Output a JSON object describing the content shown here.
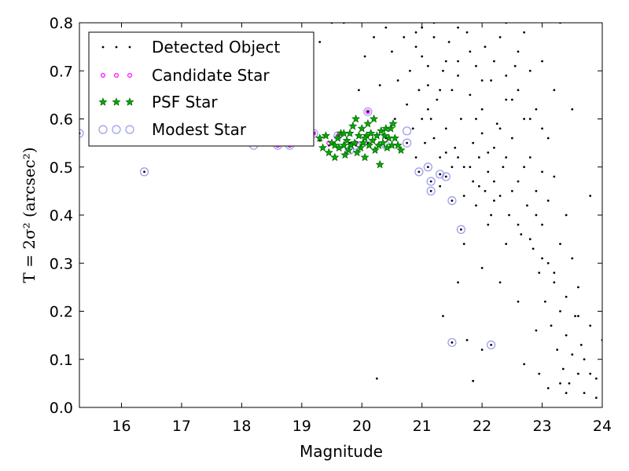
{
  "chart_data": {
    "type": "scatter",
    "xlabel": "Magnitude",
    "ylabel": "T = 2σ² (arcsec²)",
    "xlim": [
      15.3,
      24
    ],
    "ylim": [
      0.0,
      0.8
    ],
    "xticks": [
      "16",
      "17",
      "18",
      "19",
      "20",
      "21",
      "22",
      "23",
      "24"
    ],
    "yticks": [
      "0.0",
      "0.1",
      "0.2",
      "0.3",
      "0.4",
      "0.5",
      "0.6",
      "0.7",
      "0.8"
    ],
    "legend_position": "top-left",
    "legend": [
      {
        "name": "Detected Object",
        "marker": "dot",
        "color": "#000000"
      },
      {
        "name": "Candidate Star",
        "marker": "small-circle",
        "color": "#ff00ff"
      },
      {
        "name": "PSF Star",
        "marker": "star",
        "color": "#00aa00"
      },
      {
        "name": "Modest Star",
        "marker": "hollow-circle",
        "color": "#9999ee"
      }
    ],
    "series": [
      {
        "name": "Detected Object",
        "points": [
          [
            15.3,
            0.57
          ],
          [
            16.38,
            0.49
          ],
          [
            18.2,
            0.55
          ],
          [
            18.6,
            0.55
          ],
          [
            18.8,
            0.545
          ],
          [
            19.2,
            0.57
          ],
          [
            19.3,
            0.555
          ],
          [
            19.45,
            0.545
          ],
          [
            19.6,
            0.565
          ],
          [
            19.8,
            0.55
          ],
          [
            19.9,
            0.545
          ],
          [
            20.1,
            0.615
          ],
          [
            20.1,
            0.55
          ],
          [
            20.4,
            0.56
          ],
          [
            20.75,
            0.55
          ],
          [
            20.95,
            0.49
          ],
          [
            21.1,
            0.5
          ],
          [
            21.15,
            0.47
          ],
          [
            21.15,
            0.45
          ],
          [
            21.3,
            0.485
          ],
          [
            21.4,
            0.48
          ],
          [
            21.5,
            0.43
          ],
          [
            21.65,
            0.37
          ],
          [
            21.5,
            0.135
          ],
          [
            22.15,
            0.13
          ],
          [
            21.35,
            0.19
          ],
          [
            20.25,
            0.06
          ],
          [
            21.75,
            0.14
          ],
          [
            21.85,
            0.055
          ],
          [
            22.0,
            0.12
          ],
          [
            19.0,
            0.62
          ],
          [
            19.1,
            0.72
          ],
          [
            19.3,
            0.76
          ],
          [
            19.5,
            0.8
          ],
          [
            19.7,
            0.8
          ],
          [
            19.95,
            0.66
          ],
          [
            20.05,
            0.73
          ],
          [
            20.2,
            0.77
          ],
          [
            20.3,
            0.67
          ],
          [
            20.4,
            0.79
          ],
          [
            20.5,
            0.74
          ],
          [
            20.55,
            0.6
          ],
          [
            20.6,
            0.68
          ],
          [
            20.7,
            0.77
          ],
          [
            20.75,
            0.63
          ],
          [
            20.8,
            0.7
          ],
          [
            20.85,
            0.58
          ],
          [
            20.9,
            0.75
          ],
          [
            20.95,
            0.66
          ],
          [
            21.0,
            0.79
          ],
          [
            21.05,
            0.55
          ],
          [
            21.1,
            0.71
          ],
          [
            21.15,
            0.6
          ],
          [
            21.2,
            0.77
          ],
          [
            21.25,
            0.64
          ],
          [
            21.3,
            0.52
          ],
          [
            21.35,
            0.7
          ],
          [
            21.4,
            0.58
          ],
          [
            21.45,
            0.76
          ],
          [
            21.5,
            0.66
          ],
          [
            21.55,
            0.54
          ],
          [
            21.6,
            0.72
          ],
          [
            21.65,
            0.6
          ],
          [
            21.7,
            0.5
          ],
          [
            21.75,
            0.78
          ],
          [
            21.8,
            0.65
          ],
          [
            21.85,
            0.55
          ],
          [
            21.9,
            0.71
          ],
          [
            21.95,
            0.46
          ],
          [
            22.0,
            0.62
          ],
          [
            22.05,
            0.75
          ],
          [
            22.1,
            0.53
          ],
          [
            22.15,
            0.68
          ],
          [
            22.2,
            0.43
          ],
          [
            22.25,
            0.59
          ],
          [
            22.3,
            0.77
          ],
          [
            22.35,
            0.5
          ],
          [
            22.4,
            0.64
          ],
          [
            22.45,
            0.4
          ],
          [
            22.5,
            0.56
          ],
          [
            22.55,
            0.71
          ],
          [
            22.6,
            0.47
          ],
          [
            22.65,
            0.36
          ],
          [
            22.7,
            0.6
          ],
          [
            22.75,
            0.42
          ],
          [
            22.8,
            0.52
          ],
          [
            22.85,
            0.33
          ],
          [
            22.9,
            0.45
          ],
          [
            22.95,
            0.28
          ],
          [
            23.0,
            0.38
          ],
          [
            23.05,
            0.22
          ],
          [
            23.1,
            0.3
          ],
          [
            23.15,
            0.17
          ],
          [
            23.2,
            0.26
          ],
          [
            23.25,
            0.12
          ],
          [
            23.3,
            0.2
          ],
          [
            23.35,
            0.08
          ],
          [
            23.4,
            0.15
          ],
          [
            23.45,
            0.05
          ],
          [
            23.5,
            0.11
          ],
          [
            23.55,
            0.19
          ],
          [
            23.6,
            0.07
          ],
          [
            23.65,
            0.13
          ],
          [
            23.7,
            0.03
          ],
          [
            23.8,
            0.17
          ],
          [
            23.9,
            0.02
          ],
          [
            24.0,
            0.14
          ],
          [
            23.8,
            0.44
          ],
          [
            23.5,
            0.62
          ],
          [
            23.3,
            0.8
          ],
          [
            22.3,
            0.26
          ],
          [
            22.6,
            0.22
          ],
          [
            22.9,
            0.16
          ],
          [
            22.7,
            0.09
          ],
          [
            22.4,
            0.34
          ],
          [
            22.1,
            0.38
          ],
          [
            21.9,
            0.42
          ],
          [
            21.7,
            0.34
          ],
          [
            22.0,
            0.29
          ],
          [
            21.6,
            0.26
          ],
          [
            21.1,
            0.62
          ],
          [
            20.9,
            0.52
          ],
          [
            21.0,
            0.6
          ],
          [
            21.3,
            0.66
          ],
          [
            21.6,
            0.79
          ],
          [
            22.4,
            0.8
          ],
          [
            22.7,
            0.78
          ],
          [
            23.0,
            0.72
          ],
          [
            23.2,
            0.66
          ],
          [
            23.1,
            0.56
          ],
          [
            23.0,
            0.49
          ],
          [
            22.9,
            0.62
          ],
          [
            22.8,
            0.7
          ],
          [
            22.6,
            0.74
          ],
          [
            22.5,
            0.64
          ],
          [
            22.3,
            0.58
          ],
          [
            22.2,
            0.54
          ],
          [
            22.1,
            0.49
          ],
          [
            22.0,
            0.57
          ],
          [
            21.9,
            0.6
          ],
          [
            21.8,
            0.5
          ],
          [
            21.7,
            0.44
          ],
          [
            21.6,
            0.52
          ],
          [
            21.5,
            0.5
          ],
          [
            21.4,
            0.53
          ],
          [
            21.3,
            0.46
          ],
          [
            21.2,
            0.56
          ],
          [
            21.1,
            0.67
          ],
          [
            21.0,
            0.73
          ],
          [
            20.9,
            0.78
          ],
          [
            21.2,
            0.8
          ],
          [
            21.4,
            0.72
          ],
          [
            21.6,
            0.69
          ],
          [
            21.8,
            0.74
          ],
          [
            22.0,
            0.68
          ],
          [
            22.2,
            0.72
          ],
          [
            22.4,
            0.69
          ],
          [
            22.6,
            0.66
          ],
          [
            22.8,
            0.6
          ],
          [
            23.0,
            0.58
          ],
          [
            23.2,
            0.48
          ],
          [
            23.4,
            0.4
          ],
          [
            23.3,
            0.34
          ],
          [
            23.2,
            0.28
          ],
          [
            23.4,
            0.23
          ],
          [
            23.6,
            0.25
          ],
          [
            23.5,
            0.31
          ],
          [
            23.6,
            0.19
          ],
          [
            23.7,
            0.1
          ],
          [
            23.8,
            0.07
          ],
          [
            23.9,
            0.06
          ],
          [
            23.3,
            0.05
          ],
          [
            23.1,
            0.04
          ],
          [
            22.95,
            0.07
          ],
          [
            23.4,
            0.03
          ],
          [
            22.5,
            0.45
          ],
          [
            22.7,
            0.5
          ],
          [
            22.9,
            0.4
          ],
          [
            22.4,
            0.52
          ],
          [
            22.2,
            0.47
          ],
          [
            22.6,
            0.38
          ],
          [
            22.8,
            0.35
          ],
          [
            23.0,
            0.31
          ],
          [
            23.1,
            0.43
          ],
          [
            22.3,
            0.44
          ],
          [
            22.15,
            0.4
          ],
          [
            22.05,
            0.45
          ],
          [
            21.95,
            0.52
          ],
          [
            21.85,
            0.47
          ]
        ]
      },
      {
        "name": "Candidate Star",
        "points": [
          [
            18.6,
            0.545
          ],
          [
            18.8,
            0.545
          ],
          [
            19.2,
            0.57
          ],
          [
            19.6,
            0.565
          ],
          [
            20.1,
            0.615
          ],
          [
            19.45,
            0.55
          ],
          [
            19.9,
            0.55
          ]
        ]
      },
      {
        "name": "PSF Star",
        "points": [
          [
            19.3,
            0.56
          ],
          [
            19.35,
            0.54
          ],
          [
            19.4,
            0.565
          ],
          [
            19.45,
            0.53
          ],
          [
            19.5,
            0.55
          ],
          [
            19.55,
            0.52
          ],
          [
            19.6,
            0.56
          ],
          [
            19.62,
            0.54
          ],
          [
            19.65,
            0.57
          ],
          [
            19.7,
            0.545
          ],
          [
            19.72,
            0.525
          ],
          [
            19.75,
            0.555
          ],
          [
            19.78,
            0.535
          ],
          [
            19.8,
            0.57
          ],
          [
            19.82,
            0.545
          ],
          [
            19.85,
            0.585
          ],
          [
            19.88,
            0.55
          ],
          [
            19.9,
            0.6
          ],
          [
            19.92,
            0.53
          ],
          [
            19.95,
            0.565
          ],
          [
            19.98,
            0.54
          ],
          [
            20.0,
            0.58
          ],
          [
            20.02,
            0.55
          ],
          [
            20.05,
            0.52
          ],
          [
            20.08,
            0.565
          ],
          [
            20.1,
            0.59
          ],
          [
            20.12,
            0.545
          ],
          [
            20.15,
            0.57
          ],
          [
            20.18,
            0.555
          ],
          [
            20.2,
            0.6
          ],
          [
            20.22,
            0.535
          ],
          [
            20.25,
            0.565
          ],
          [
            20.28,
            0.545
          ],
          [
            20.3,
            0.505
          ],
          [
            20.32,
            0.575
          ],
          [
            20.35,
            0.55
          ],
          [
            20.38,
            0.565
          ],
          [
            20.4,
            0.58
          ],
          [
            20.42,
            0.54
          ],
          [
            20.45,
            0.56
          ],
          [
            20.48,
            0.58
          ],
          [
            20.5,
            0.545
          ],
          [
            20.52,
            0.59
          ],
          [
            20.55,
            0.56
          ],
          [
            20.6,
            0.545
          ],
          [
            20.65,
            0.535
          ],
          [
            19.55,
            0.545
          ],
          [
            19.7,
            0.57
          ],
          [
            20.05,
            0.56
          ]
        ]
      },
      {
        "name": "Modest Star",
        "points": [
          [
            15.3,
            0.57
          ],
          [
            15.9,
            0.575
          ],
          [
            16.2,
            0.57
          ],
          [
            16.38,
            0.49
          ],
          [
            18.2,
            0.545
          ],
          [
            18.6,
            0.545
          ],
          [
            18.8,
            0.545
          ],
          [
            19.2,
            0.57
          ],
          [
            19.6,
            0.565
          ],
          [
            19.8,
            0.535
          ],
          [
            20.1,
            0.615
          ],
          [
            20.75,
            0.575
          ],
          [
            20.75,
            0.55
          ],
          [
            20.95,
            0.49
          ],
          [
            21.1,
            0.5
          ],
          [
            21.15,
            0.47
          ],
          [
            21.15,
            0.45
          ],
          [
            21.3,
            0.485
          ],
          [
            21.4,
            0.48
          ],
          [
            21.5,
            0.43
          ],
          [
            21.65,
            0.37
          ],
          [
            21.5,
            0.135
          ],
          [
            22.15,
            0.13
          ],
          [
            19.9,
            0.545
          ],
          [
            20.4,
            0.545
          ]
        ]
      }
    ]
  }
}
